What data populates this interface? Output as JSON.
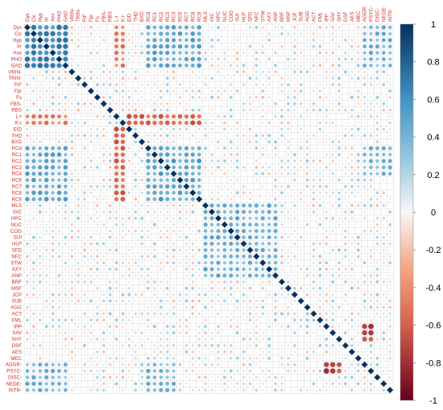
{
  "chart_data": {
    "type": "heatmap",
    "variables": [
      "Dys",
      "Cic",
      "Hyp",
      "Irr",
      "Anx",
      "PHO",
      "GAD",
      "VRIN-",
      "TRIN-",
      "FrF",
      "Fpr",
      "Fs",
      "FBS-",
      "RBS",
      "L-r",
      "K-r",
      "EID",
      "THD",
      "BXD",
      "RCd",
      "RC1",
      "RC2",
      "RC3",
      "RC4",
      "RC6",
      "RC7",
      "RC8",
      "RC9",
      "MLS",
      "GIC",
      "HPC",
      "NUC",
      "COG",
      "SUI",
      "HLP",
      "SFD",
      "NFC",
      "STW",
      "AXY",
      "ANP",
      "BRF",
      "MSF",
      "JCP",
      "SUB",
      "AGG",
      "ACT",
      "FML",
      "IPP",
      "SAV",
      "SHY",
      "DSF",
      "AES",
      "MEC",
      "AGGR-",
      "PSYC-",
      "DISC-",
      "NEGE-",
      "INTR-"
    ],
    "correlations_by_block": [
      {
        "rows": [
          "Dys",
          "Cic",
          "Hyp",
          "Irr",
          "Anx",
          "PHO",
          "GAD"
        ],
        "cols": [
          "Dys",
          "Cic",
          "Hyp",
          "Irr",
          "Anx",
          "PHO",
          "GAD"
        ],
        "r": 0.62
      },
      {
        "rows": [
          "Dys",
          "Cic",
          "Hyp",
          "Irr",
          "Anx",
          "PHO",
          "GAD"
        ],
        "cols": [
          "RCd",
          "RC1",
          "RC2",
          "RC3",
          "RC4",
          "RC6",
          "RC7",
          "RC8",
          "RC9"
        ],
        "r": 0.45
      },
      {
        "rows": [
          "Dys",
          "Cic",
          "Hyp",
          "Irr",
          "Anx",
          "PHO",
          "GAD"
        ],
        "cols": [
          "L-r",
          "K-r"
        ],
        "r": -0.45
      },
      {
        "rows": [
          "RCd",
          "RC1",
          "RC2",
          "RC3",
          "RC4",
          "RC6",
          "RC7",
          "RC8",
          "RC9"
        ],
        "cols": [
          "RCd",
          "RC1",
          "RC2",
          "RC3",
          "RC4",
          "RC6",
          "RC7",
          "RC8",
          "RC9"
        ],
        "r": 0.48
      },
      {
        "rows": [
          "L-r",
          "K-r"
        ],
        "cols": [
          "RCd",
          "RC1",
          "RC2",
          "RC3",
          "RC4",
          "RC6",
          "RC7",
          "RC8",
          "RC9",
          "EID",
          "THD",
          "BXD"
        ],
        "r": -0.55
      },
      {
        "rows": [
          "MLS",
          "GIC",
          "HPC",
          "NUC",
          "COG",
          "SUI",
          "HLP",
          "SFD",
          "NFC",
          "STW",
          "AXY",
          "ANP"
        ],
        "cols": [
          "MLS",
          "GIC",
          "HPC",
          "NUC",
          "COG",
          "SUI",
          "HLP",
          "SFD",
          "NFC",
          "STW",
          "AXY",
          "ANP"
        ],
        "r": 0.4
      },
      {
        "rows": [
          "AGGR-",
          "PSYC-",
          "DISC-",
          "NEGE-",
          "INTR-"
        ],
        "cols": [
          "Dys",
          "Cic",
          "Hyp",
          "Irr",
          "Anx",
          "PHO",
          "GAD",
          "RCd",
          "RC1",
          "RC2",
          "RC3",
          "RC4"
        ],
        "r": 0.38
      },
      {
        "rows": [
          "IPP",
          "SAV",
          "SHY"
        ],
        "cols": [
          "AGGR-",
          "PSYC-"
        ],
        "r": -0.7
      }
    ],
    "diagonal": 1,
    "colorbar": {
      "ticks": [
        "1",
        "0.8",
        "0.6",
        "0.4",
        "0.2",
        "0",
        "-0.2",
        "-0.4",
        "-0.6",
        "-0.8",
        "-1"
      ],
      "range": [
        -1,
        1
      ]
    },
    "colors": {
      "negative": "#67001f",
      "neutral": "#f7f7f7",
      "positive": "#053061",
      "label": "#d42a2a",
      "grid": "#d0d0d0"
    }
  }
}
